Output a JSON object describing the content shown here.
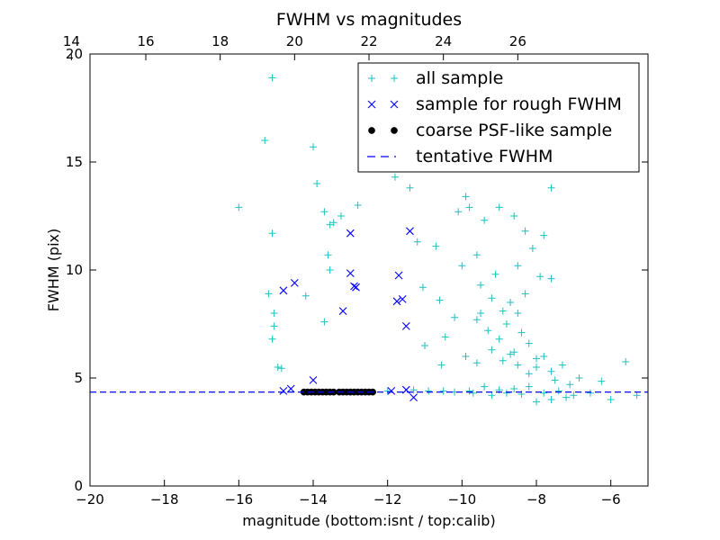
{
  "chart_data": {
    "type": "scatter",
    "title": "FWHM vs magnitudes",
    "xlabel": "magnitude (bottom:isnt / top:calib)",
    "ylabel": "FWHM (pix)",
    "xlim": [
      -20,
      -5
    ],
    "ylim": [
      0,
      20
    ],
    "x_ticks": [
      "−20",
      "−18",
      "−16",
      "−14",
      "−12",
      "−10",
      "−8",
      "−6"
    ],
    "x_tick_values": [
      -20,
      -18,
      -16,
      -14,
      -12,
      -10,
      -8,
      -6
    ],
    "y_ticks": [
      "0",
      "5",
      "10",
      "15",
      "20"
    ],
    "y_tick_values": [
      0,
      5,
      10,
      15,
      20
    ],
    "top_axis": {
      "ticks": [
        "14",
        "16",
        "18",
        "20",
        "22",
        "24",
        "26"
      ],
      "tick_values": [
        14,
        16,
        18,
        20,
        22,
        24,
        26
      ],
      "offset_to_bottom": -34.5
    },
    "grid": false,
    "legend_position": "top-right",
    "colors": {
      "all": "#1fbfbf",
      "rough": "#0000ff",
      "coarse": "#000000",
      "tentative": "#0000ff"
    },
    "series": [
      {
        "name": "all sample",
        "marker": "+",
        "points": [
          [
            -15.1,
            18.9
          ],
          [
            -15.3,
            16.0
          ],
          [
            -16.0,
            12.9
          ],
          [
            -15.1,
            11.7
          ],
          [
            -15.2,
            8.9
          ],
          [
            -15.05,
            8.0
          ],
          [
            -15.05,
            7.4
          ],
          [
            -15.1,
            6.8
          ],
          [
            -14.95,
            5.5
          ],
          [
            -14.85,
            5.45
          ],
          [
            -14.0,
            15.7
          ],
          [
            -13.9,
            14.0
          ],
          [
            -13.7,
            12.7
          ],
          [
            -13.55,
            12.1
          ],
          [
            -13.45,
            12.2
          ],
          [
            -13.25,
            12.5
          ],
          [
            -13.6,
            10.7
          ],
          [
            -13.55,
            10.0
          ],
          [
            -14.2,
            8.8
          ],
          [
            -13.7,
            7.6
          ],
          [
            -12.8,
            13.0
          ],
          [
            -12.4,
            14.7
          ],
          [
            -11.8,
            14.3
          ],
          [
            -11.4,
            13.8
          ],
          [
            -11.2,
            11.3
          ],
          [
            -10.7,
            11.1
          ],
          [
            -11.05,
            9.2
          ],
          [
            -10.6,
            8.6
          ],
          [
            -10.0,
            10.2
          ],
          [
            -10.2,
            7.8
          ],
          [
            -9.6,
            7.7
          ],
          [
            -10.45,
            6.9
          ],
          [
            -11.0,
            6.5
          ],
          [
            -10.55,
            5.6
          ],
          [
            -9.9,
            13.4
          ],
          [
            -9.8,
            12.9
          ],
          [
            -10.1,
            12.7
          ],
          [
            -9.6,
            10.7
          ],
          [
            -9.4,
            12.3
          ],
          [
            -9.0,
            12.9
          ],
          [
            -8.6,
            12.5
          ],
          [
            -8.3,
            11.8
          ],
          [
            -8.1,
            11.0
          ],
          [
            -7.9,
            9.7
          ],
          [
            -7.6,
            13.8
          ],
          [
            -7.6,
            9.6
          ],
          [
            -7.8,
            11.6
          ],
          [
            -8.5,
            10.2
          ],
          [
            -6.85,
            5.0
          ],
          [
            -6.25,
            4.85
          ],
          [
            -5.6,
            5.75
          ],
          [
            -5.3,
            4.2
          ],
          [
            -6.0,
            4.0
          ],
          [
            -6.55,
            4.3
          ],
          [
            -12.0,
            4.4
          ],
          [
            -11.3,
            4.45
          ],
          [
            -10.9,
            4.4
          ],
          [
            -10.5,
            4.4
          ],
          [
            -10.2,
            4.35
          ],
          [
            -9.8,
            4.4
          ],
          [
            -9.4,
            4.6
          ],
          [
            -9.0,
            4.45
          ],
          [
            -8.6,
            4.5
          ],
          [
            -8.2,
            4.6
          ],
          [
            -7.8,
            4.3
          ],
          [
            -7.4,
            4.4
          ],
          [
            -7.0,
            4.2
          ],
          [
            -9.7,
            4.3
          ],
          [
            -9.2,
            4.2
          ],
          [
            -8.8,
            4.3
          ],
          [
            -8.4,
            4.25
          ],
          [
            -8.0,
            3.9
          ],
          [
            -7.6,
            4.0
          ],
          [
            -7.2,
            4.1
          ],
          [
            -9.5,
            9.3
          ],
          [
            -9.5,
            8.0
          ],
          [
            -9.3,
            7.2
          ],
          [
            -9.0,
            6.8
          ],
          [
            -8.8,
            7.5
          ],
          [
            -8.6,
            6.2
          ],
          [
            -8.4,
            7.1
          ],
          [
            -8.2,
            6.6
          ],
          [
            -8.0,
            5.9
          ],
          [
            -8.7,
            8.5
          ],
          [
            -8.5,
            8.0
          ],
          [
            -8.3,
            8.9
          ],
          [
            -9.1,
            9.8
          ],
          [
            -9.2,
            8.7
          ],
          [
            -8.9,
            8.1
          ],
          [
            -8.2,
            5.2
          ],
          [
            -8.0,
            5.5
          ],
          [
            -7.8,
            6.0
          ],
          [
            -7.6,
            5.3
          ],
          [
            -7.5,
            4.9
          ],
          [
            -7.3,
            5.6
          ],
          [
            -7.1,
            4.7
          ],
          [
            -8.5,
            5.6
          ],
          [
            -8.7,
            6.1
          ],
          [
            -8.9,
            5.8
          ],
          [
            -9.2,
            6.3
          ],
          [
            -9.6,
            5.7
          ],
          [
            -9.9,
            6.0
          ]
        ]
      },
      {
        "name": "sample for rough FWHM",
        "marker": "x",
        "points": [
          [
            -14.5,
            9.4
          ],
          [
            -14.8,
            9.05
          ],
          [
            -13.0,
            11.7
          ],
          [
            -13.0,
            9.85
          ],
          [
            -12.9,
            9.25
          ],
          [
            -12.85,
            9.2
          ],
          [
            -13.2,
            8.1
          ],
          [
            -11.7,
            9.75
          ],
          [
            -11.75,
            8.55
          ],
          [
            -11.6,
            8.65
          ],
          [
            -11.5,
            7.4
          ],
          [
            -11.4,
            11.8
          ],
          [
            -14.6,
            4.5
          ],
          [
            -14.8,
            4.4
          ],
          [
            -14.0,
            4.9
          ],
          [
            -11.3,
            4.1
          ],
          [
            -11.5,
            4.45
          ],
          [
            -11.9,
            4.4
          ]
        ]
      },
      {
        "name": "coarse PSF-like sample",
        "marker": "o",
        "points": [
          [
            -14.25,
            4.35
          ],
          [
            -14.15,
            4.35
          ],
          [
            -14.05,
            4.35
          ],
          [
            -13.95,
            4.35
          ],
          [
            -13.85,
            4.35
          ],
          [
            -13.75,
            4.35
          ],
          [
            -13.65,
            4.35
          ],
          [
            -13.55,
            4.35
          ],
          [
            -13.45,
            4.35
          ],
          [
            -13.3,
            4.35
          ],
          [
            -13.2,
            4.35
          ],
          [
            -13.1,
            4.35
          ],
          [
            -13.0,
            4.35
          ],
          [
            -12.9,
            4.35
          ],
          [
            -12.8,
            4.35
          ],
          [
            -12.7,
            4.35
          ],
          [
            -12.6,
            4.35
          ],
          [
            -12.5,
            4.35
          ],
          [
            -12.4,
            4.35
          ]
        ]
      }
    ],
    "reference_line": {
      "name": "tentative FWHM",
      "y": 4.35
    },
    "legend": [
      {
        "label": "all sample",
        "marker": "+"
      },
      {
        "label": "sample for rough FWHM",
        "marker": "x"
      },
      {
        "label": "coarse PSF-like sample",
        "marker": "o"
      },
      {
        "label": "tentative FWHM",
        "marker": "dash"
      }
    ]
  }
}
